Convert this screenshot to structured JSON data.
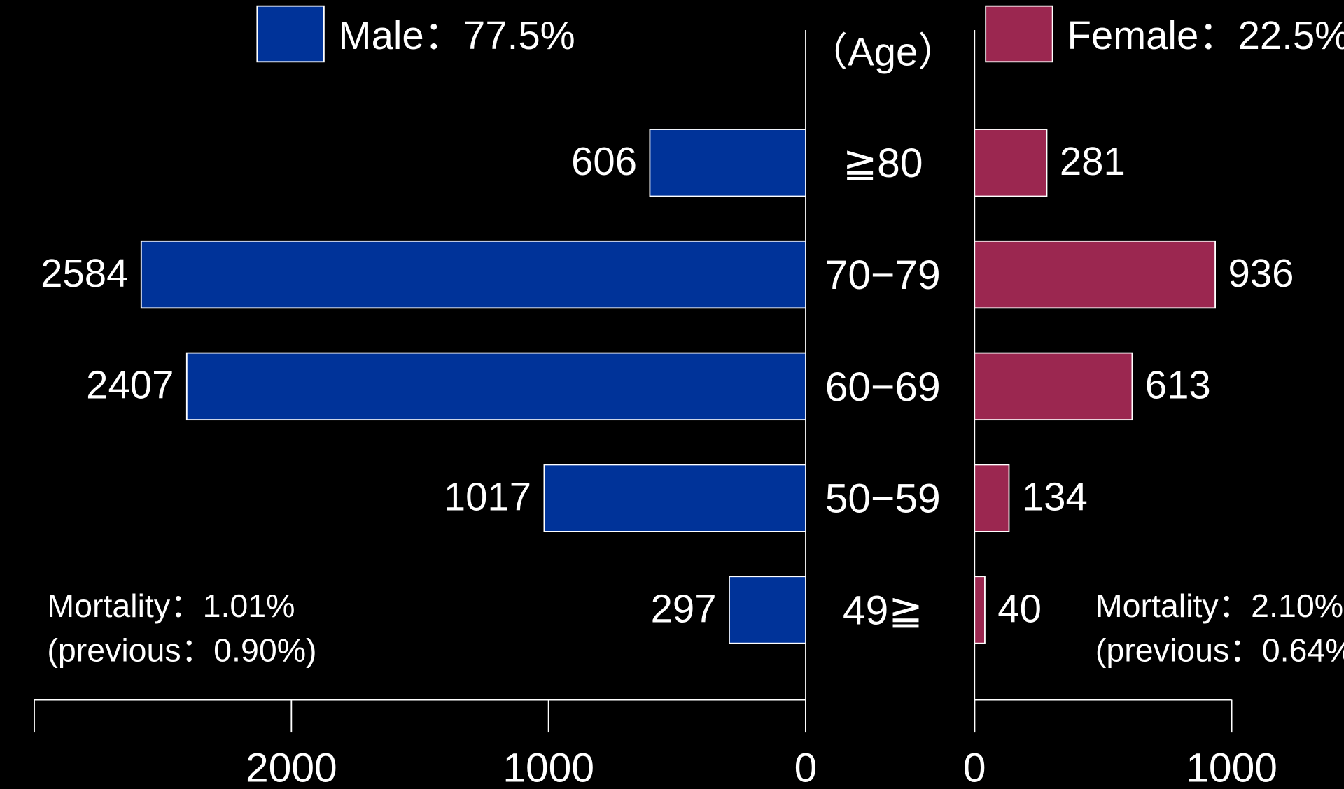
{
  "chart_data": {
    "type": "pyramid",
    "y_label": "（Age）",
    "categories": [
      "≧80",
      "70−79",
      "60−69",
      "50−59",
      "49≧"
    ],
    "series": [
      {
        "name": "Male：77.5%",
        "color": "#003399",
        "side": "left",
        "values": [
          606,
          2584,
          2407,
          1017,
          297
        ],
        "xlim": [
          0,
          3000
        ],
        "xticks": [
          0,
          1000,
          2000
        ],
        "annotation": [
          "Mortality：1.01%",
          "(previous：0.90%)"
        ]
      },
      {
        "name": "Female：22.5%",
        "color": "#9b2750",
        "side": "right",
        "values": [
          281,
          936,
          613,
          134,
          40
        ],
        "xlim": [
          0,
          1000
        ],
        "xticks": [
          0,
          1000
        ],
        "annotation": [
          "Mortality：2.10%",
          "(previous：0.64%)"
        ]
      }
    ]
  }
}
